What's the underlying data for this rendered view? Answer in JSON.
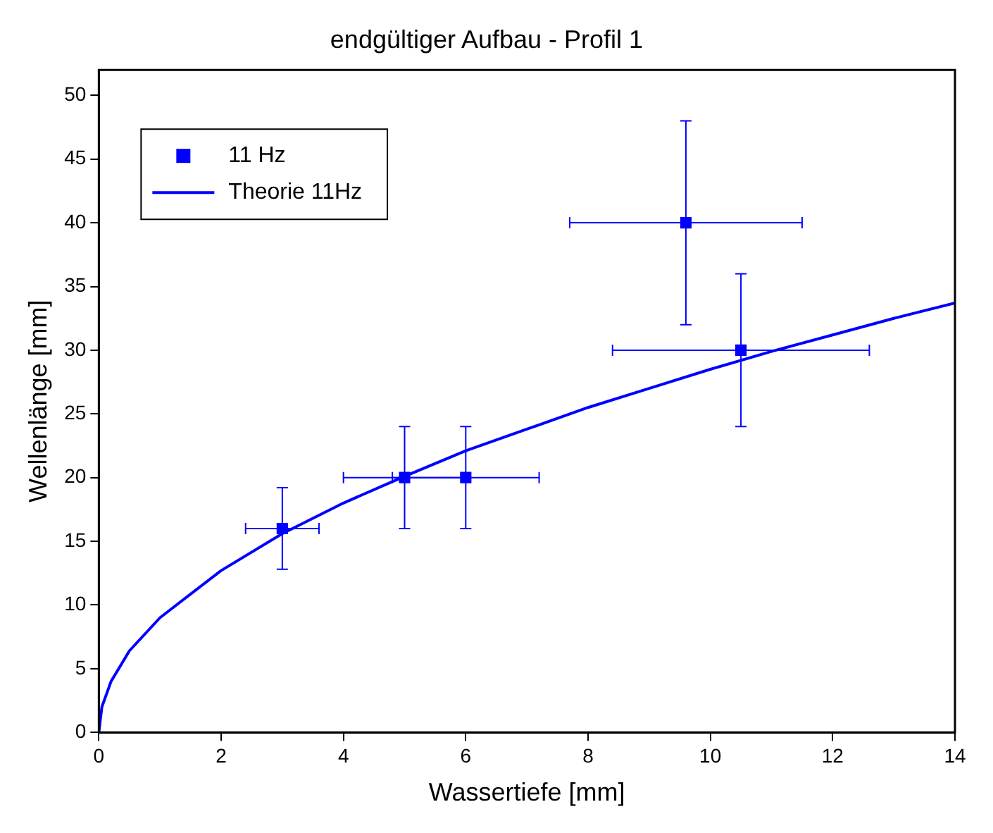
{
  "chart_data": {
    "type": "scatter",
    "title": "endgültiger Aufbau - Profil 1",
    "xlabel": "Wassertiefe [mm]",
    "ylabel": "Wellenlänge [mm]",
    "xlim": [
      0,
      14
    ],
    "xticks": [
      0,
      2,
      4,
      6,
      8,
      10,
      12,
      14
    ],
    "ylim": [
      0,
      52
    ],
    "yticks": [
      0,
      5,
      10,
      15,
      20,
      25,
      30,
      35,
      40,
      45,
      50
    ],
    "grid": false,
    "legend": "top left",
    "marker": "square",
    "series": [
      {
        "name": "11 Hz",
        "type": "scatter",
        "color": "#0000ff",
        "x": [
          3,
          5,
          6,
          9.6,
          10.5
        ],
        "values": [
          16,
          20,
          20,
          40,
          30
        ],
        "errors": [
          3.2,
          4,
          4,
          8,
          6
        ],
        "xerrors": [
          0.6,
          1,
          1.2,
          1.9,
          2.1
        ]
      },
      {
        "name": "Theorie 11Hz",
        "type": "line",
        "color": "#0000ff",
        "line_style": "solid",
        "marker": "none",
        "x": [
          0,
          0.05,
          0.2,
          0.5,
          1,
          2,
          3,
          4,
          5,
          6,
          7,
          8,
          9,
          10,
          11,
          12,
          13,
          14
        ],
        "values": [
          0,
          2,
          4,
          6.4,
          9,
          12.7,
          15.6,
          18,
          20.1,
          22.1,
          23.8,
          25.5,
          27,
          28.5,
          29.9,
          31.2,
          32.5,
          33.7
        ]
      }
    ]
  }
}
